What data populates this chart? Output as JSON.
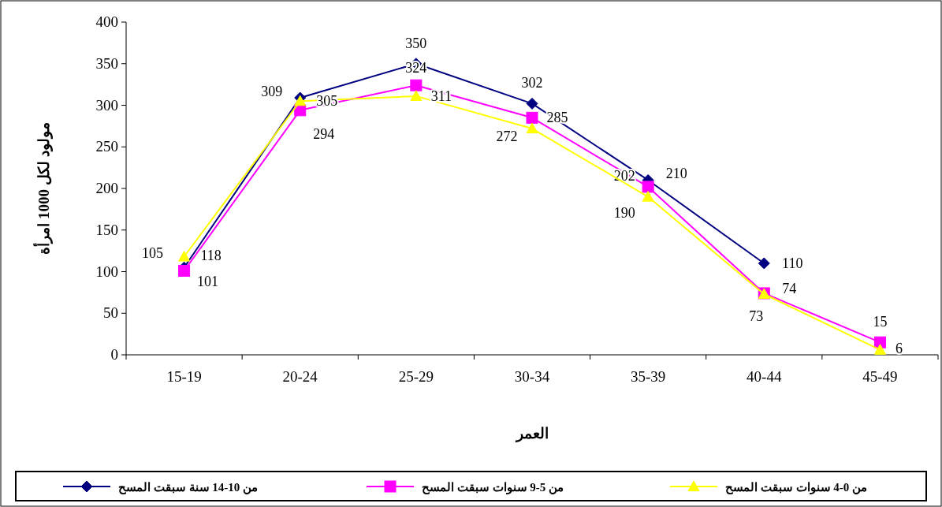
{
  "chart_data": {
    "type": "line",
    "xlabel": "العمر",
    "ylabel": "مولود لكل 1000 امرأة",
    "categories": [
      "15-19",
      "20-24",
      "25-29",
      "30-34",
      "35-39",
      "40-44",
      "45-49"
    ],
    "ylim": [
      0,
      400
    ],
    "yticks": [
      0,
      50,
      100,
      150,
      200,
      250,
      300,
      350,
      400
    ],
    "grid": false,
    "legend": "bottom",
    "data_labels": true,
    "series": [
      {
        "name": "من 10-14 سنة سبقت المسح",
        "color": "#000080",
        "marker": "diamond",
        "values": [
          105,
          309,
          350,
          302,
          210,
          110,
          null
        ]
      },
      {
        "name": "من 5-9 سنوات سبقت المسح",
        "color": "#ff00ff",
        "marker": "square",
        "values": [
          101,
          294,
          324,
          285,
          202,
          74,
          15
        ]
      },
      {
        "name": "من 0-4 سنوات سبقت المسح",
        "color": "#ffff00",
        "marker": "triangle",
        "values": [
          118,
          305,
          311,
          272,
          190,
          73,
          6
        ]
      }
    ]
  }
}
